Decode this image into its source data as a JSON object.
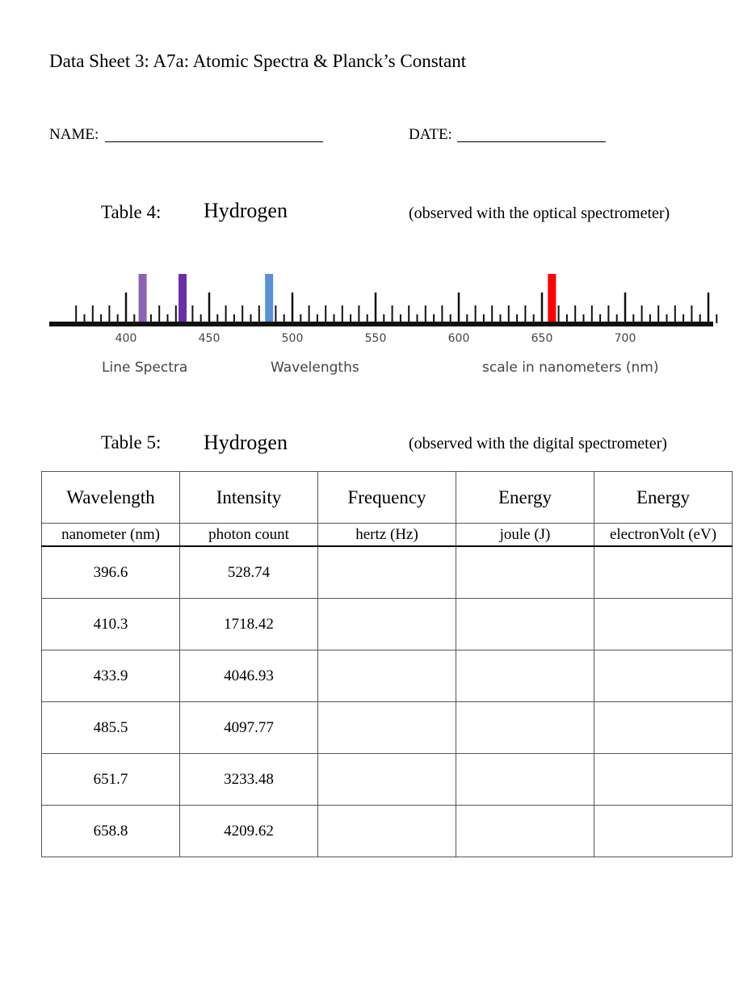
{
  "title": "Data Sheet 3:  A7a:  Atomic Spectra & Planck’s Constant",
  "name_label": "NAME:",
  "date_label": "DATE:",
  "table4": {
    "label": "Table 4:",
    "element": "Hydrogen",
    "note": "(observed with the optical spectrometer)"
  },
  "spectrum": {
    "tick_labels": [
      "400",
      "450",
      "500",
      "550",
      "600",
      "650",
      "700"
    ],
    "captions": [
      "Line Spectra",
      "Wavelengths",
      "scale in nanometers (nm)"
    ],
    "lines": [
      {
        "wavelength": 410,
        "color": "#8a63b5"
      },
      {
        "wavelength": 434,
        "color": "#6a2fa8"
      },
      {
        "wavelength": 486,
        "color": "#5b8fd6"
      },
      {
        "wavelength": 656,
        "color": "#ff0000"
      }
    ]
  },
  "table5": {
    "label": "Table 5:",
    "element": "Hydrogen",
    "note": "(observed with the digital spectrometer)"
  },
  "table": {
    "headers": [
      "Wavelength",
      "Intensity",
      "Frequency",
      "Energy",
      "Energy"
    ],
    "units": [
      "nanometer (nm)",
      "photon count",
      "hertz (Hz)",
      "joule (J)",
      "electronVolt (eV)"
    ],
    "rows": [
      [
        "396.6",
        "528.74",
        "",
        "",
        ""
      ],
      [
        "410.3",
        "1718.42",
        "",
        "",
        ""
      ],
      [
        "433.9",
        "4046.93",
        "",
        "",
        ""
      ],
      [
        "485.5",
        "4097.77",
        "",
        "",
        ""
      ],
      [
        "651.7",
        "3233.48",
        "",
        "",
        ""
      ],
      [
        "658.8",
        "4209.62",
        "",
        "",
        ""
      ]
    ]
  }
}
